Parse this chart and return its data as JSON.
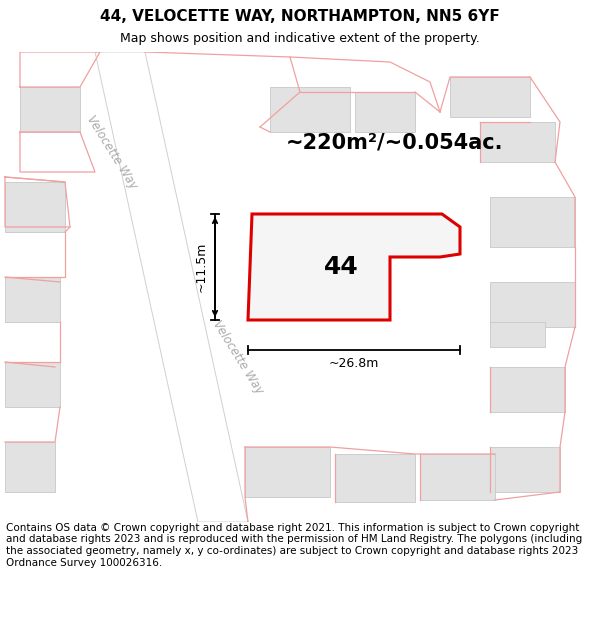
{
  "title": "44, VELOCETTE WAY, NORTHAMPTON, NN5 6YF",
  "subtitle": "Map shows position and indicative extent of the property.",
  "area_text": "~220m²/~0.054ac.",
  "number_label": "44",
  "dim1_label": "~11.5m",
  "dim2_label": "~26.8m",
  "footer": "Contains OS data © Crown copyright and database right 2021. This information is subject to Crown copyright and database rights 2023 and is reproduced with the permission of HM Land Registry. The polygons (including the associated geometry, namely x, y co-ordinates) are subject to Crown copyright and database rights 2023 Ordnance Survey 100026316.",
  "map_bg": "#f7f7f7",
  "building_fill": "#e2e2e2",
  "building_stroke": "#c8c8c8",
  "road_fill": "#ffffff",
  "road_stroke": "#d0d0d0",
  "parcel_stroke": "#f0a0a0",
  "prop_stroke": "#dd0000",
  "prop_fill": "#f5f5f5",
  "street_color": "#aaaaaa",
  "title_fontsize": 11,
  "subtitle_fontsize": 9,
  "area_fontsize": 15,
  "label_fontsize": 18,
  "dim_fontsize": 9,
  "footer_fontsize": 7.5,
  "street_fontsize": 8.5
}
